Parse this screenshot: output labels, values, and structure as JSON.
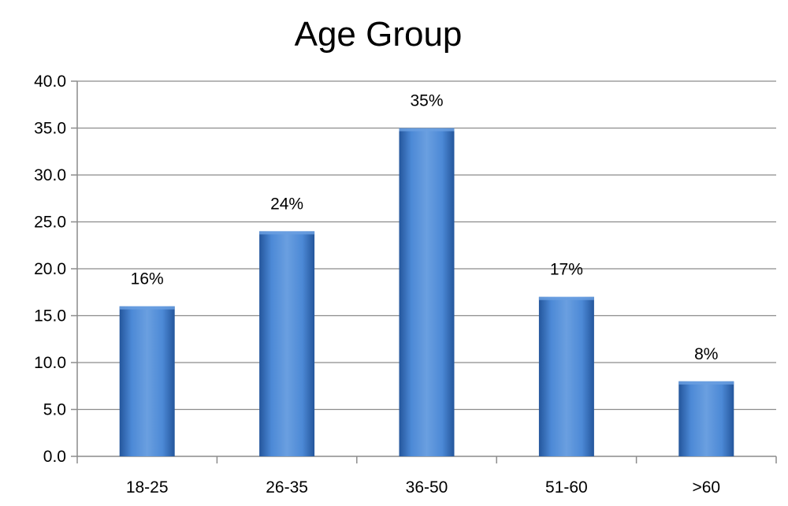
{
  "chart_data": {
    "type": "bar",
    "title": "Age Group",
    "xlabel": "",
    "ylabel": "",
    "categories": [
      "18-25",
      "26-35",
      "36-50",
      "51-60",
      ">60"
    ],
    "values": [
      16,
      24,
      35,
      17,
      8
    ],
    "data_labels": [
      "16%",
      "24%",
      "35%",
      "17%",
      "8%"
    ],
    "ylim": [
      0,
      40
    ],
    "ytick_labels": [
      "0.0",
      "5.0",
      "10.0",
      "15.0",
      "20.0",
      "25.0",
      "30.0",
      "35.0",
      "40.0"
    ],
    "grid": "horizontal",
    "legend": "none",
    "bar_color": "#3b78c8",
    "bar_color_light": "#6a9fe0",
    "bar_color_dark": "#24569c",
    "grid_color": "#8c8c8c"
  }
}
